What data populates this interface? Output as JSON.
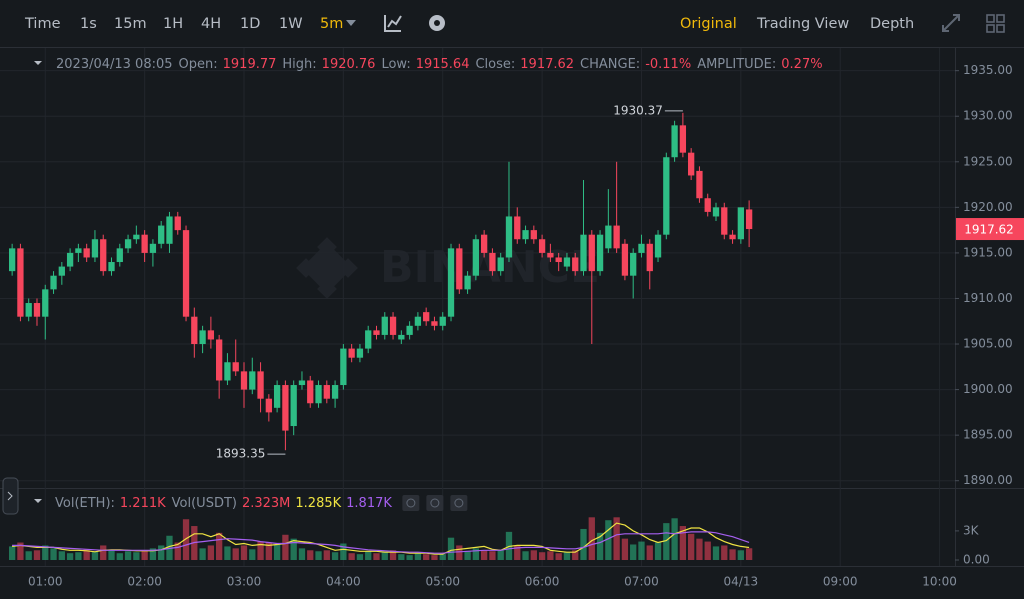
{
  "toolbar": {
    "intervals": [
      "Time",
      "1s",
      "15m",
      "1H",
      "4H",
      "1D",
      "1W"
    ],
    "active_interval": "5m",
    "views": [
      "Original",
      "Trading View",
      "Depth"
    ]
  },
  "chart_data": {
    "type": "candlestick",
    "watermark": "BINANCE",
    "info": {
      "time": "2023/04/13 08:05",
      "open_label": "Open:",
      "high_label": "High:",
      "low_label": "Low:",
      "close_label": "Close:",
      "change_label": "CHANGE:",
      "change": "-0.11%",
      "amplitude_label": "AMPLITUDE:",
      "amplitude": "0.27%"
    },
    "up_color": "#2ebd85",
    "down_color": "#f6465d",
    "categories": [
      null,
      null,
      null,
      null,
      "01:00",
      null,
      null,
      null,
      null,
      null,
      null,
      null,
      null,
      null,
      null,
      null,
      "02:00",
      null,
      null,
      null,
      null,
      null,
      null,
      null,
      null,
      null,
      null,
      null,
      "03:00",
      null,
      null,
      null,
      null,
      null,
      null,
      null,
      null,
      null,
      null,
      null,
      "04:00",
      null,
      null,
      null,
      null,
      null,
      null,
      null,
      null,
      null,
      null,
      null,
      "05:00",
      null,
      null,
      null,
      null,
      null,
      null,
      null,
      null,
      null,
      null,
      null,
      "06:00",
      null,
      null,
      null,
      null,
      null,
      null,
      null,
      null,
      null,
      null,
      null,
      "07:00",
      null,
      null,
      null,
      null,
      null,
      null,
      null,
      null,
      null,
      null,
      null,
      "04/13",
      null,
      null,
      null,
      null,
      null,
      null,
      null,
      null,
      null,
      null,
      null,
      "09:00",
      null,
      null,
      null,
      null,
      null,
      null,
      null,
      null,
      null,
      null,
      null,
      "10:00",
      null
    ],
    "open": [
      1913,
      1915.5,
      1908,
      1909.5,
      1908,
      1911,
      1912.5,
      1913.5,
      1915,
      1915.5,
      1914.5,
      1916.5,
      1913,
      1914,
      1915.5,
      1916.5,
      1917,
      1915,
      1916,
      1916,
      1919,
      1917.5,
      1908,
      1905,
      1906.5,
      1905.5,
      1901,
      1903,
      1902,
      1900,
      1902,
      1899,
      1898,
      1900.5,
      1896,
      1900.5,
      1901,
      1898.5,
      1900.5,
      1899,
      1900.5,
      1904.5,
      1903.5,
      1904.5,
      1906.5,
      1906,
      1908,
      1905.5,
      1906,
      1907,
      1908.5,
      1907.5,
      1907,
      1908,
      1915.5,
      1911,
      1912.5,
      1917,
      1915,
      1913,
      1914.5,
      1919,
      1916.5,
      1917.5,
      1916.5,
      1915,
      1914.5,
      1913.5,
      1914.5,
      1913,
      1917,
      1913,
      1915.5,
      1918,
      1916,
      1912.5,
      1915,
      1916,
      1914.5,
      1917,
      1925.5,
      1929,
      1926,
      1924,
      1921,
      1919,
      1920,
      1917,
      1916.5,
      1919.77,
      null,
      null,
      null,
      null,
      null,
      null,
      null,
      null,
      null,
      null,
      null,
      null,
      null,
      null,
      null,
      null,
      null,
      null,
      null,
      null,
      null,
      null,
      null,
      null
    ],
    "high": [
      1916,
      1916,
      1910,
      1910,
      1911.5,
      1913,
      1914,
      1915.5,
      1916,
      1916,
      1917.5,
      1917,
      1914.5,
      1916,
      1917,
      1918,
      1917.5,
      1916.5,
      1918.5,
      1919.5,
      1919.5,
      1918,
      1909,
      1907,
      1908,
      1906,
      1904,
      1905.5,
      1903,
      1903.5,
      1903,
      1899.5,
      1901,
      1901,
      1901,
      1902,
      1901.5,
      1901,
      1901,
      1901,
      1905,
      1905,
      1905,
      1907,
      1907,
      1908.5,
      1908.5,
      1906.5,
      1907.5,
      1908.5,
      1909,
      1908,
      1908.5,
      1916,
      1916,
      1913,
      1917,
      1917.5,
      1915.5,
      1915,
      1925,
      1920,
      1918,
      1918,
      1917,
      1916,
      1915,
      1915,
      1915,
      1923,
      1917.5,
      1917.5,
      1922,
      1925,
      1916.5,
      1915.5,
      1917,
      1916.5,
      1917.5,
      1926,
      1929.5,
      1930.37,
      1926.5,
      1924.5,
      1921.5,
      1920.5,
      1920.5,
      1917.5,
      1920,
      1920.76,
      null,
      null,
      null,
      null,
      null,
      null,
      null,
      null,
      null,
      null,
      null,
      null,
      null,
      null,
      null,
      null,
      null,
      null,
      null,
      null,
      null,
      null,
      null,
      null
    ],
    "low": [
      1912.5,
      1907.5,
      1907.5,
      1907,
      1905.5,
      1910.5,
      1911.5,
      1913,
      1914,
      1914,
      1914,
      1912.5,
      1912.5,
      1913.5,
      1915,
      1916,
      1914,
      1913.5,
      1915.5,
      1915,
      1917,
      1907.5,
      1903.5,
      1904,
      1904.5,
      1899,
      1900.5,
      1901.5,
      1898,
      1899.5,
      1897.5,
      1896.5,
      1897.5,
      1893.35,
      1895,
      1900,
      1898,
      1898,
      1898.5,
      1898,
      1900,
      1903,
      1903,
      1904,
      1905.5,
      1905.5,
      1905.5,
      1905,
      1905.5,
      1906.5,
      1907,
      1906.5,
      1906.5,
      1907.5,
      1910.5,
      1910.5,
      1912,
      1914.5,
      1912.5,
      1912.5,
      1914,
      1916,
      1916,
      1916,
      1914.5,
      1914,
      1913,
      1913,
      1912.5,
      1912.5,
      1905,
      1912.5,
      1915,
      1915,
      1912,
      1910,
      1914.5,
      1911,
      1914,
      1916.5,
      1925,
      1925.5,
      1923,
      1920.5,
      1919,
      1918.5,
      1916.5,
      1916,
      1916,
      1915.64,
      null,
      null,
      null,
      null,
      null,
      null,
      null,
      null,
      null,
      null,
      null,
      null,
      null,
      null,
      null,
      null,
      null,
      null,
      null,
      null,
      null,
      null,
      null,
      null
    ],
    "close": [
      1915.5,
      1908,
      1909.5,
      1908,
      1911,
      1912.5,
      1913.5,
      1915,
      1915.5,
      1914.5,
      1916.5,
      1913,
      1914,
      1915.5,
      1916.5,
      1917,
      1915,
      1916,
      1918,
      1919,
      1917.5,
      1908,
      1905,
      1906.5,
      1905.5,
      1901,
      1903,
      1902,
      1900,
      1902,
      1899,
      1897.5,
      1900.5,
      1895.5,
      1900.5,
      1901,
      1898.5,
      1900.5,
      1899,
      1900.5,
      1904.5,
      1903.5,
      1904.5,
      1906.5,
      1906,
      1908,
      1906,
      1906,
      1907,
      1908,
      1907.5,
      1907,
      1908,
      1915.5,
      1911,
      1912.5,
      1916.5,
      1915,
      1913,
      1914.5,
      1919,
      1916.5,
      1917.5,
      1916.5,
      1915,
      1914.5,
      1914,
      1914.5,
      1913,
      1917,
      1913,
      1917,
      1918,
      1915.5,
      1912.5,
      1915,
      1916,
      1913,
      1917,
      1925.5,
      1929,
      1926,
      1923.5,
      1921,
      1919.5,
      1920,
      1917,
      1916.5,
      1920,
      1917.62,
      null,
      null,
      null,
      null,
      null,
      null,
      null,
      null,
      null,
      null,
      null,
      null,
      null,
      null,
      null,
      null,
      null,
      null,
      null,
      null,
      null,
      null,
      null,
      null
    ],
    "ylim": [
      1889.2,
      1936.5
    ],
    "yticks": [
      {
        "value": 1890,
        "label": "1890.00"
      },
      {
        "value": 1895,
        "label": "1895.00"
      },
      {
        "value": 1900,
        "label": "1900.00"
      },
      {
        "value": 1905,
        "label": "1905.00"
      },
      {
        "value": 1910,
        "label": "1910.00"
      },
      {
        "value": 1915,
        "label": "1915.00"
      },
      {
        "value": 1920,
        "label": "1920.00"
      },
      {
        "value": 1925,
        "label": "1925.00"
      },
      {
        "value": 1930,
        "label": "1930.00"
      },
      {
        "value": 1935,
        "label": "1935.00"
      }
    ],
    "grid": true,
    "volume": {
      "title": "Vol(ETH):",
      "last_value_label": "1.211K",
      "usdt_title": "Vol(USDT)",
      "usdt_value_label": "2.323M",
      "values": [
        1400,
        1800,
        900,
        1000,
        1500,
        1200,
        900,
        700,
        800,
        1100,
        900,
        1500,
        1000,
        700,
        900,
        800,
        1000,
        1200,
        1500,
        2500,
        1800,
        4200,
        3500,
        1200,
        1500,
        2800,
        1400,
        1200,
        1500,
        1100,
        1900,
        1800,
        1600,
        2600,
        2200,
        1200,
        1000,
        900,
        1000,
        800,
        1700,
        700,
        600,
        900,
        700,
        800,
        1000,
        600,
        500,
        700,
        600,
        500,
        600,
        2300,
        1500,
        900,
        1200,
        1000,
        900,
        1000,
        2900,
        1500,
        900,
        1000,
        800,
        900,
        700,
        800,
        1000,
        3200,
        4400,
        2800,
        4100,
        4400,
        2200,
        1600,
        1900,
        1500,
        1800,
        3800,
        4300,
        3500,
        2700,
        2200,
        1900,
        1400,
        1500,
        1100,
        1000,
        1211,
        null,
        null,
        null,
        null,
        null,
        null,
        null,
        null,
        null,
        null,
        null,
        null,
        null,
        null,
        null,
        null,
        null,
        null,
        null,
        null,
        null,
        null,
        null,
        null
      ],
      "ylim": [
        0,
        6700
      ],
      "yticks": [
        {
          "value": 0,
          "label": "0.00"
        },
        {
          "value": 3000,
          "label": "3K"
        }
      ],
      "series": [
        {
          "name": "1.285K",
          "color": "#f0e442",
          "values": [
            1400,
            1500,
            1400,
            1300,
            1300,
            1300,
            1100,
            1000,
            1000,
            950,
            850,
            1000,
            1050,
            1050,
            1000,
            950,
            950,
            950,
            1050,
            1400,
            1600,
            2200,
            2700,
            2700,
            2400,
            2700,
            2100,
            1600,
            1700,
            1500,
            1600,
            1500,
            1600,
            1700,
            2000,
            1900,
            1800,
            1600,
            1300,
            1000,
            1100,
            1000,
            900,
            900,
            900,
            800,
            800,
            800,
            700,
            700,
            700,
            600,
            600,
            1000,
            1100,
            1200,
            1300,
            1400,
            1100,
            1000,
            1400,
            1500,
            1500,
            1500,
            1400,
            1000,
            900,
            800,
            800,
            1300,
            2000,
            2400,
            3100,
            3800,
            3600,
            3000,
            2600,
            2100,
            1800,
            2000,
            2700,
            3000,
            3300,
            3300,
            2900,
            2300,
            1900,
            1600,
            1400,
            1285,
            null,
            null,
            null,
            null,
            null,
            null,
            null,
            null,
            null,
            null,
            null,
            null,
            null,
            null,
            null,
            null,
            null,
            null,
            null,
            null,
            null,
            null,
            null,
            null
          ]
        },
        {
          "name": "1.817K",
          "color": "#a55ff0",
          "values": [
            1500,
            1500,
            1450,
            1400,
            1350,
            1300,
            1250,
            1200,
            1150,
            1100,
            1050,
            1000,
            1000,
            1000,
            1000,
            1000,
            1000,
            1000,
            1050,
            1200,
            1300,
            1550,
            1800,
            1900,
            2000,
            2100,
            2200,
            2150,
            2100,
            2050,
            1900,
            1800,
            1700,
            1700,
            1800,
            1750,
            1700,
            1650,
            1600,
            1500,
            1350,
            1250,
            1150,
            1050,
            1000,
            950,
            900,
            850,
            800,
            800,
            750,
            700,
            700,
            800,
            850,
            900,
            950,
            1000,
            1000,
            1000,
            1150,
            1250,
            1300,
            1300,
            1300,
            1250,
            1200,
            1150,
            1150,
            1300,
            1600,
            1800,
            2200,
            2600,
            2700,
            2700,
            2700,
            2700,
            2700,
            2800,
            2700,
            2800,
            2900,
            2900,
            2900,
            2800,
            2600,
            2400,
            2100,
            1817,
            null,
            null,
            null,
            null,
            null,
            null,
            null,
            null,
            null,
            null,
            null,
            null,
            null,
            null,
            null,
            null,
            null,
            null,
            null,
            null,
            null,
            null,
            null,
            null
          ]
        }
      ]
    }
  }
}
